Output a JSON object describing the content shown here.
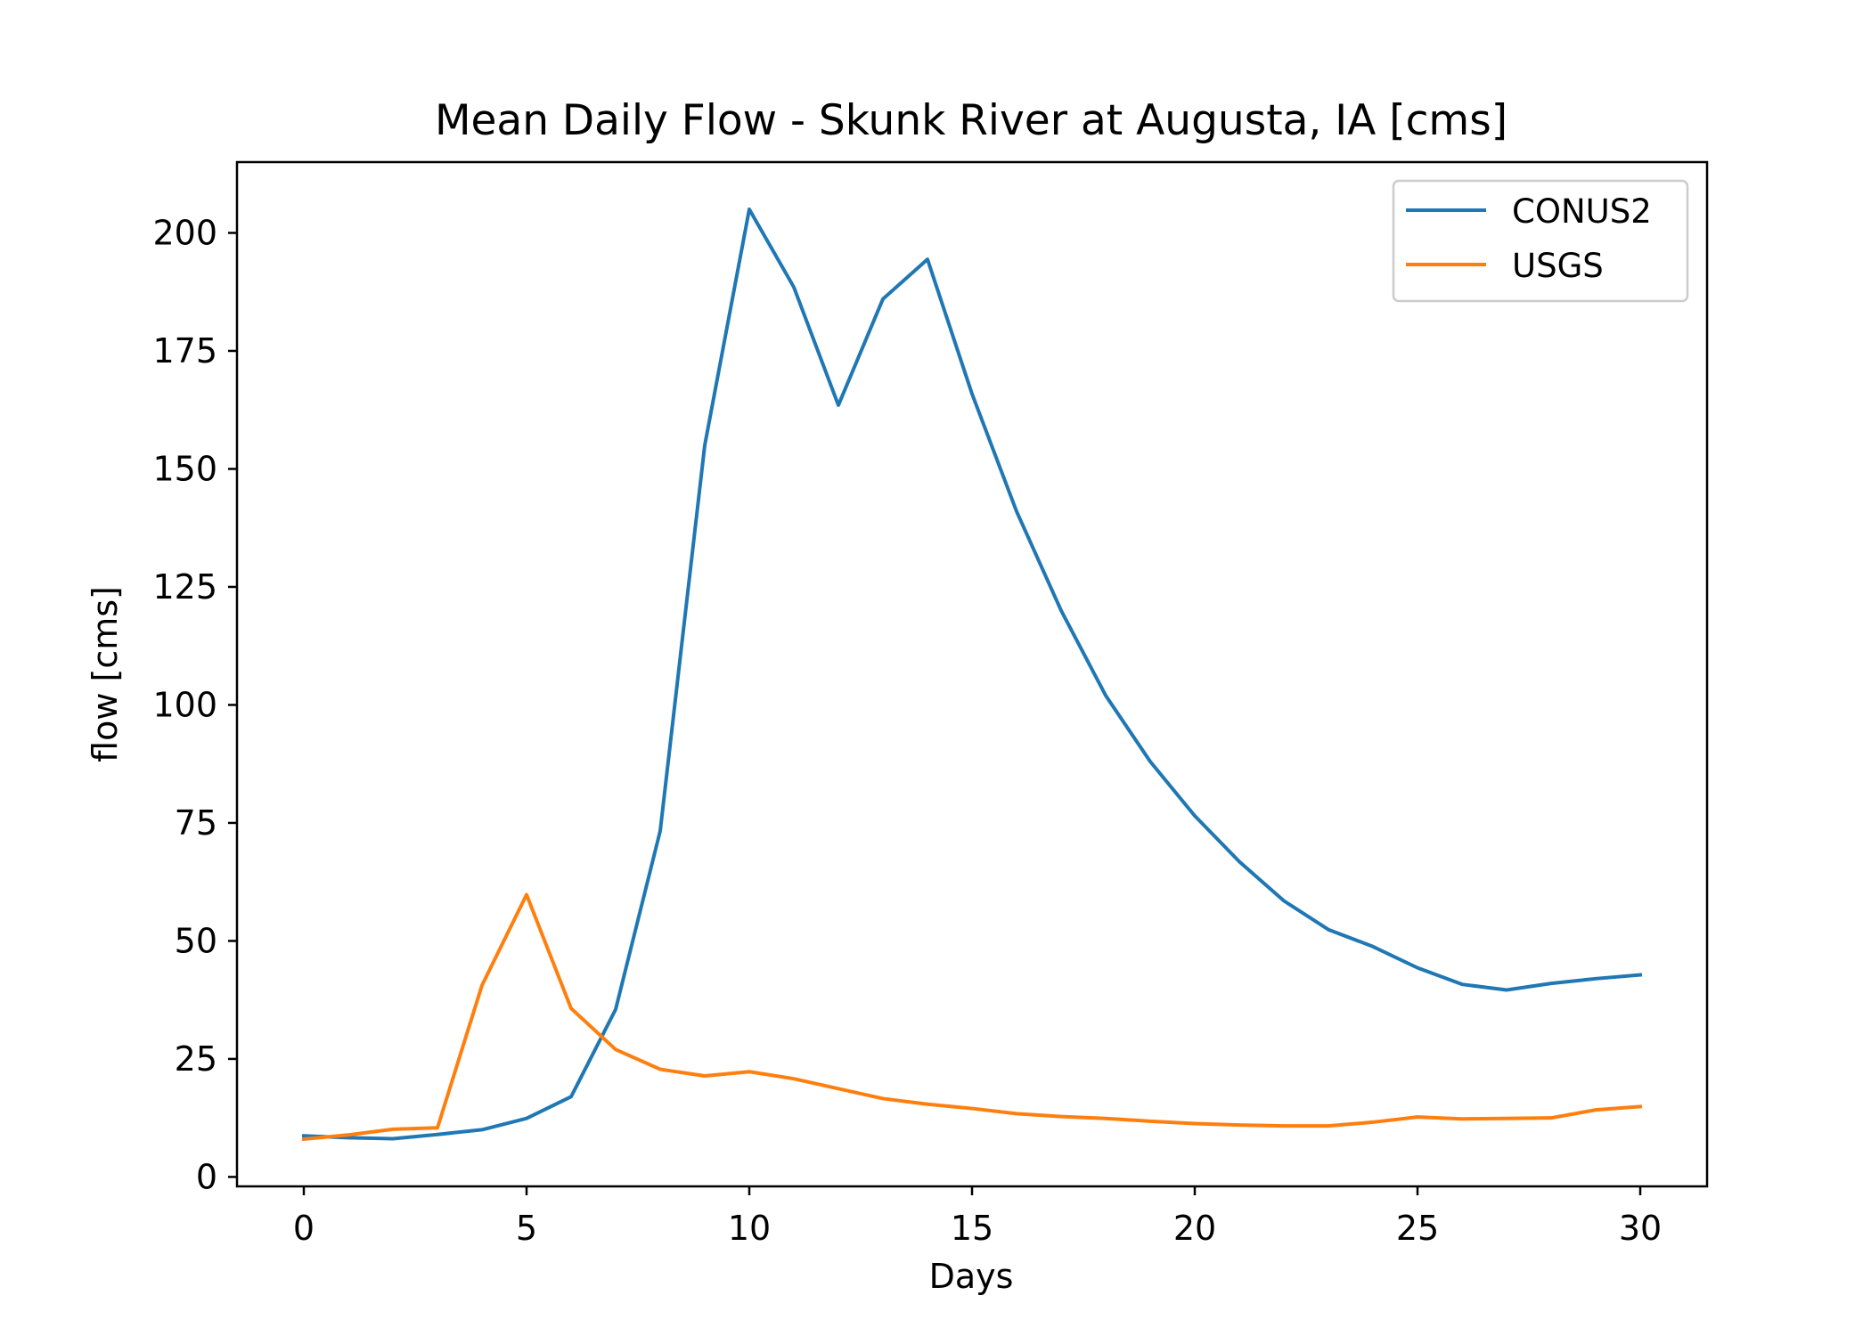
{
  "chart_data": {
    "type": "line",
    "title": "Mean Daily Flow - Skunk River at Augusta, IA [cms]",
    "xlabel": "Days",
    "ylabel": "flow [cms]",
    "xlim": [
      -1.5,
      31.5
    ],
    "ylim": [
      -2,
      215
    ],
    "xticks": [
      0,
      5,
      10,
      15,
      20,
      25,
      30
    ],
    "yticks": [
      0,
      25,
      50,
      75,
      100,
      125,
      150,
      175,
      200
    ],
    "grid": false,
    "legend_position": "top-right",
    "x": [
      0,
      1,
      2,
      3,
      4,
      5,
      6,
      7,
      8,
      9,
      10,
      11,
      12,
      13,
      14,
      15,
      16,
      17,
      18,
      19,
      20,
      21,
      22,
      23,
      24,
      25,
      26,
      27,
      28,
      29,
      30
    ],
    "series": [
      {
        "name": "CONUS2",
        "color": "#1f77b4",
        "values": [
          8.7,
          8.3,
          8.1,
          9.0,
          10.0,
          12.4,
          17.0,
          35.5,
          73.3,
          155.0,
          205.0,
          188.5,
          163.5,
          186.0,
          194.4,
          165.9,
          141.0,
          120.0,
          102.0,
          88.0,
          76.5,
          66.8,
          58.5,
          52.4,
          48.8,
          44.3,
          40.8,
          39.6,
          41.0,
          42.0,
          42.8
        ],
        "label_text": "CONUS2"
      },
      {
        "name": "USGS",
        "color": "#ff7f0e",
        "values": [
          8.0,
          8.9,
          10.1,
          10.4,
          40.6,
          59.8,
          35.7,
          27.0,
          22.8,
          21.4,
          22.3,
          20.8,
          18.7,
          16.6,
          15.4,
          14.5,
          13.4,
          12.8,
          12.4,
          11.8,
          11.3,
          11.0,
          10.8,
          10.8,
          11.6,
          12.7,
          12.3,
          12.4,
          12.5,
          14.2,
          14.9
        ],
        "label_text": "USGS"
      }
    ]
  }
}
